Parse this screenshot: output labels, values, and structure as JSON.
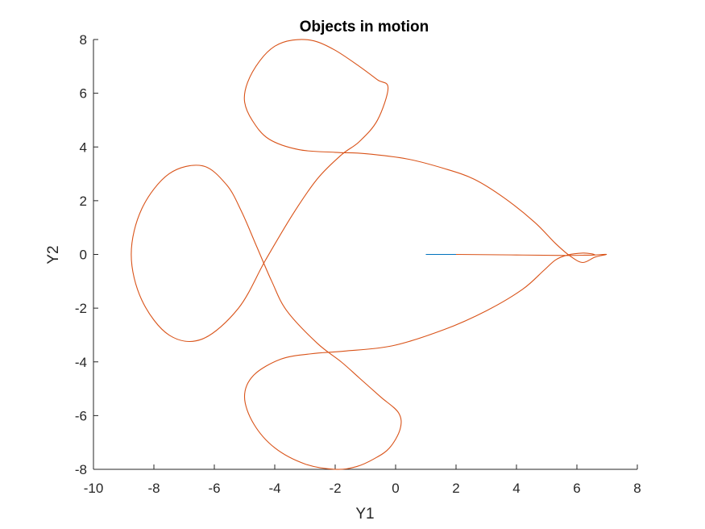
{
  "chart_data": {
    "type": "line",
    "title": "Objects in motion",
    "xlabel": "Y1",
    "ylabel": "Y2",
    "xlim": [
      -10,
      8
    ],
    "ylim": [
      -8,
      8
    ],
    "xticks": [
      -10,
      -8,
      -6,
      -4,
      -2,
      0,
      2,
      4,
      6,
      8
    ],
    "yticks": [
      -8,
      -6,
      -4,
      -2,
      0,
      2,
      4,
      6,
      8
    ],
    "grid": false,
    "series": [
      {
        "color": "#0072BD",
        "x": [
          1.0,
          2.0
        ],
        "y": [
          0.0,
          0.0
        ]
      },
      {
        "color": "#D95319",
        "x": [
          2.0,
          4.0,
          5.6,
          6.2,
          6.6,
          6.98,
          6.6,
          6.2,
          5.8,
          5.3,
          4.6,
          3.6,
          2.6,
          1.6,
          0.4,
          -1.0,
          -2.0,
          -3.2,
          -4.2,
          -4.75,
          -5.0,
          -4.9,
          -4.5,
          -4.0,
          -3.4,
          -2.7,
          -2.0,
          -1.2,
          -0.6,
          -0.25,
          -0.6,
          -1.2,
          -1.8,
          -2.6,
          -3.4,
          -4.3,
          -5.2,
          -6.4,
          -7.5,
          -8.4,
          -8.75,
          -8.4,
          -7.5,
          -6.4,
          -5.6,
          -5.1,
          -4.6,
          -4.1,
          -3.6,
          -2.6,
          -1.8,
          -1.2,
          -0.5,
          0.1,
          0.15,
          -0.2,
          -0.7,
          -1.3,
          -2.0,
          -3.0,
          -4.0,
          -4.7,
          -5.0,
          -4.7,
          -3.8,
          -2.8,
          -1.7,
          -0.1,
          1.6,
          3.0,
          4.2,
          4.9,
          5.3,
          5.7,
          6.2,
          6.5,
          6.6
        ],
        "y": [
          0.0,
          -0.02,
          -0.04,
          -0.03,
          -0.02,
          0.0,
          -0.1,
          -0.3,
          -0.08,
          0.4,
          1.2,
          2.1,
          2.8,
          3.2,
          3.55,
          3.75,
          3.8,
          3.9,
          4.3,
          5.0,
          5.7,
          6.4,
          7.2,
          7.75,
          7.98,
          7.95,
          7.6,
          7.0,
          6.5,
          6.2,
          5.0,
          4.2,
          3.7,
          2.8,
          1.5,
          -0.2,
          -2.0,
          -3.15,
          -3.0,
          -1.7,
          0.0,
          1.7,
          3.0,
          3.3,
          2.6,
          1.6,
          0.3,
          -1.0,
          -2.1,
          -3.3,
          -4.0,
          -4.6,
          -5.3,
          -5.9,
          -6.5,
          -7.2,
          -7.6,
          -7.9,
          -8.0,
          -7.8,
          -7.2,
          -6.3,
          -5.3,
          -4.5,
          -3.9,
          -3.7,
          -3.6,
          -3.4,
          -2.8,
          -2.1,
          -1.3,
          -0.6,
          -0.2,
          -0.02,
          0.05,
          0.02,
          -0.02
        ]
      }
    ]
  }
}
